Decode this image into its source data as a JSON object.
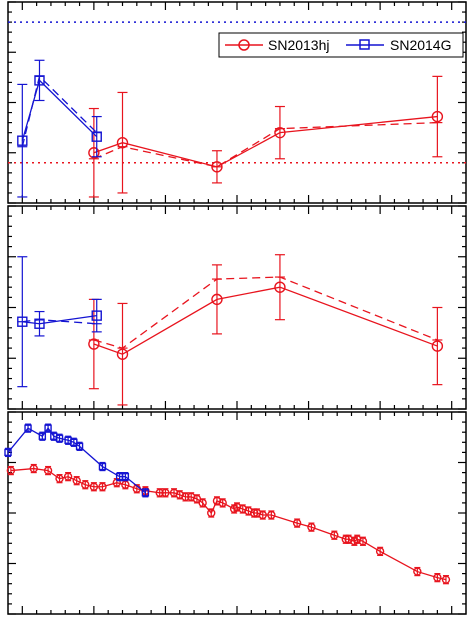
{
  "legend": {
    "sn2013hj_label": "SN2013hj",
    "sn2014g_label": "SN2014G"
  },
  "colors": {
    "sn2013hj": "#e8141e",
    "sn2014g": "#1414d2",
    "axis": "#000000"
  },
  "chart_data": [
    {
      "type": "line",
      "panel": "top",
      "xlim": [
        -5,
        155
      ],
      "ylim": [
        0,
        100
      ],
      "reference_lines": [
        {
          "y": 90,
          "style": "dotted",
          "series": "SN2014G"
        },
        {
          "y": 20,
          "style": "dotted",
          "series": "SN2013hj"
        }
      ],
      "series": [
        {
          "name": "SN2013hj",
          "marker": "circle",
          "x": [
            25,
            35,
            68,
            90,
            145
          ],
          "y": [
            25,
            30,
            18,
            35,
            43
          ],
          "yerr": [
            22,
            25,
            8,
            13,
            20
          ],
          "dashed_y": [
            22,
            28,
            18,
            37,
            40
          ]
        },
        {
          "name": "SN2014G",
          "marker": "square",
          "x": [
            0,
            6,
            26
          ],
          "y": [
            31,
            61,
            33
          ],
          "yerr": [
            28,
            10,
            10
          ],
          "dashed_y": [
            28,
            63,
            35
          ]
        }
      ]
    },
    {
      "type": "line",
      "panel": "middle",
      "xlim": [
        -5,
        155
      ],
      "ylim": [
        0,
        100
      ],
      "series": [
        {
          "name": "SN2013hj",
          "marker": "circle",
          "x": [
            25,
            35,
            68,
            90,
            145
          ],
          "y": [
            32,
            27,
            54,
            60,
            31
          ],
          "yerr": [
            22,
            25,
            17,
            16,
            19
          ],
          "dashed_y": [
            34,
            30,
            64,
            65,
            34
          ]
        },
        {
          "name": "SN2014G",
          "marker": "square",
          "x": [
            0,
            6,
            26
          ],
          "y": [
            43,
            42,
            46
          ],
          "yerr": [
            32,
            6,
            8
          ],
          "dashed_y": [
            43,
            44,
            42
          ]
        }
      ]
    },
    {
      "type": "line",
      "panel": "bottom",
      "xlim": [
        -5,
        155
      ],
      "ylim": [
        0,
        100
      ],
      "series": [
        {
          "name": "SN2013hj",
          "marker": "circle",
          "points": [
            [
              -4,
              71
            ],
            [
              4,
              72
            ],
            [
              9,
              71
            ],
            [
              13,
              67
            ],
            [
              16,
              68
            ],
            [
              19,
              66
            ],
            [
              22,
              64
            ],
            [
              25,
              63
            ],
            [
              28,
              63
            ],
            [
              33,
              65
            ],
            [
              36,
              64
            ],
            [
              40,
              62
            ],
            [
              43,
              61
            ],
            [
              48,
              60
            ],
            [
              50,
              60
            ],
            [
              53,
              60
            ],
            [
              55,
              59
            ],
            [
              57,
              58
            ],
            [
              59,
              58
            ],
            [
              61,
              57
            ],
            [
              63,
              55
            ],
            [
              66,
              50
            ],
            [
              68,
              56
            ],
            [
              70,
              55
            ],
            [
              74,
              52
            ],
            [
              75,
              53
            ],
            [
              77,
              52
            ],
            [
              79,
              51
            ],
            [
              81,
              50
            ],
            [
              82,
              50
            ],
            [
              84,
              49
            ],
            [
              87,
              49
            ],
            [
              96,
              45
            ],
            [
              101,
              43
            ],
            [
              109,
              39
            ],
            [
              113,
              37
            ],
            [
              114,
              37
            ],
            [
              116,
              36
            ],
            [
              117,
              37
            ],
            [
              119,
              36
            ],
            [
              125,
              31
            ],
            [
              138,
              21
            ],
            [
              145,
              18
            ],
            [
              148,
              17
            ]
          ]
        },
        {
          "name": "SN2014G",
          "marker": "square",
          "points": [
            [
              -5,
              80
            ],
            [
              2,
              92
            ],
            [
              7,
              88
            ],
            [
              9,
              92
            ],
            [
              11,
              88
            ],
            [
              13,
              87
            ],
            [
              16,
              86
            ],
            [
              18,
              85
            ],
            [
              20,
              83
            ],
            [
              28,
              73
            ],
            [
              34,
              68
            ],
            [
              36,
              68
            ],
            [
              43,
              60
            ]
          ]
        }
      ]
    }
  ]
}
